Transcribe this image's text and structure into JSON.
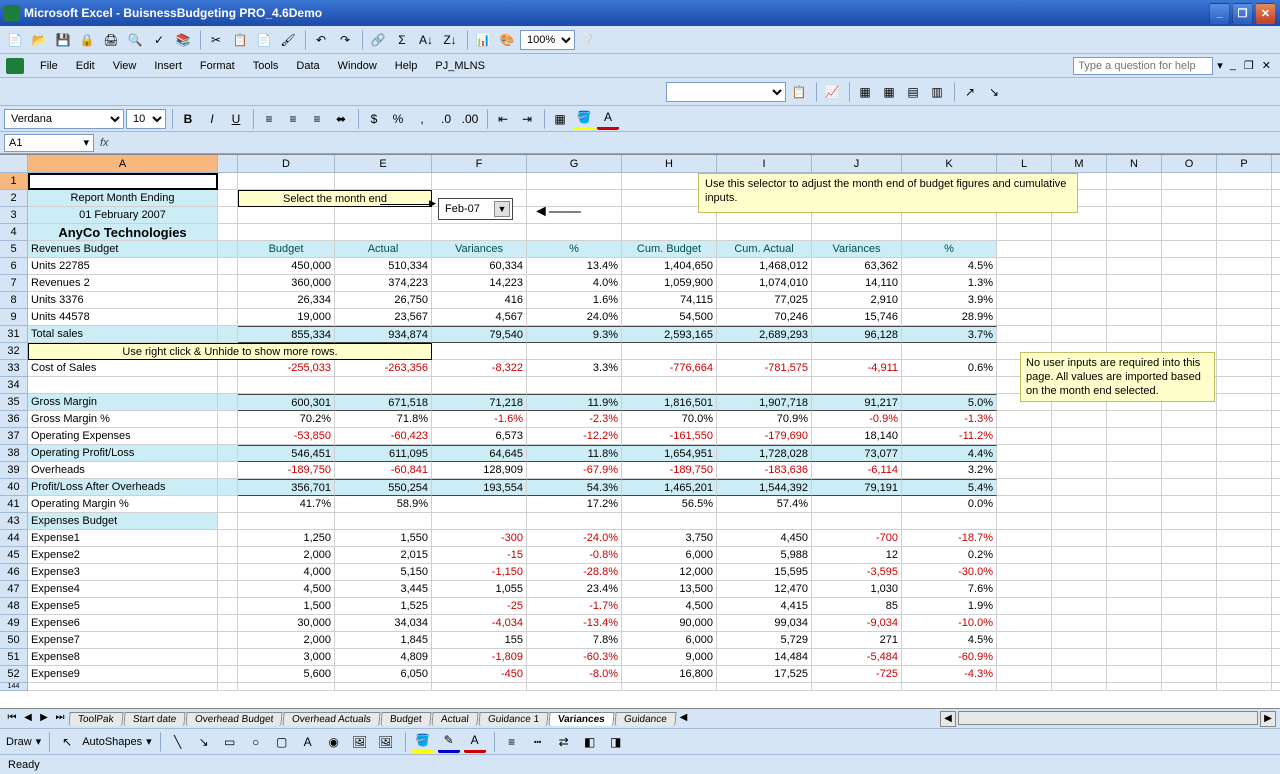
{
  "app": {
    "title": "Microsoft Excel - BuisnessBudgeting PRO_4.6Demo"
  },
  "menu": {
    "file": "File",
    "edit": "Edit",
    "view": "View",
    "insert": "Insert",
    "format": "Format",
    "tools": "Tools",
    "data": "Data",
    "window": "Window",
    "help": "Help",
    "pjmlns": "PJ_MLNS"
  },
  "helpPlaceholder": "Type a question for help",
  "font": {
    "name": "Verdana",
    "size": "10"
  },
  "namebox": "A1",
  "zoom": "100%",
  "columns": [
    "A",
    "D",
    "E",
    "F",
    "G",
    "H",
    "I",
    "J",
    "K",
    "L",
    "M",
    "N",
    "O",
    "P"
  ],
  "dropdown": {
    "value": "Feb-07"
  },
  "note1": "Use this selector to adjust the month end of budget figures and cumulative inputs.",
  "note2": "No user inputs are required into this page. All values are imported based on the month end selected.",
  "labels": {
    "reportMonth": "Report Month Ending",
    "selectMonth": "Select the month end",
    "date": "01 February 2007",
    "company": "AnyCo Technologies",
    "revBudget": "Revenues Budget",
    "unhideMsg": "Use right click & Unhide to show more rows.",
    "expBudget": "Expenses Budget"
  },
  "headers": {
    "budget": "Budget",
    "actual": "Actual",
    "variances": "Variances",
    "pct": "%",
    "cumBudget": "Cum. Budget",
    "cumActual": "Cum. Actual"
  },
  "rows": [
    {
      "n": "6",
      "label": "Units 22785",
      "v": [
        "450,000",
        "510,334",
        "60,334",
        "13.4%",
        "1,404,650",
        "1,468,012",
        "63,362",
        "4.5%"
      ]
    },
    {
      "n": "7",
      "label": "Revenues 2",
      "v": [
        "360,000",
        "374,223",
        "14,223",
        "4.0%",
        "1,059,900",
        "1,074,010",
        "14,110",
        "1.3%"
      ]
    },
    {
      "n": "8",
      "label": "Units 3376",
      "v": [
        "26,334",
        "26,750",
        "416",
        "1.6%",
        "74,115",
        "77,025",
        "2,910",
        "3.9%"
      ]
    },
    {
      "n": "9",
      "label": "Units 44578",
      "v": [
        "19,000",
        "23,567",
        "4,567",
        "24.0%",
        "54,500",
        "70,246",
        "15,746",
        "28.9%"
      ]
    },
    {
      "n": "31",
      "label": "Total sales",
      "v": [
        "855,334",
        "934,874",
        "79,540",
        "9.3%",
        "2,593,165",
        "2,689,293",
        "96,128",
        "3.7%"
      ],
      "hl": true
    },
    {
      "n": "33",
      "label": "Cost of Sales",
      "v": [
        "-255,033",
        "-263,356",
        "-8,322",
        "3.3%",
        "-776,664",
        "-781,575",
        "-4,911",
        "0.6%"
      ],
      "neg": [
        0,
        1,
        2,
        4,
        5,
        6
      ]
    },
    {
      "n": "35",
      "label": "Gross Margin",
      "v": [
        "600,301",
        "671,518",
        "71,218",
        "11.9%",
        "1,816,501",
        "1,907,718",
        "91,217",
        "5.0%"
      ],
      "hl": true
    },
    {
      "n": "36",
      "label": "Gross Margin %",
      "v": [
        "70.2%",
        "71.8%",
        "-1.6%",
        "-2.3%",
        "70.0%",
        "70.9%",
        "-0.9%",
        "-1.3%"
      ],
      "neg": [
        2,
        3,
        6,
        7
      ]
    },
    {
      "n": "37",
      "label": "Operating Expenses",
      "v": [
        "-53,850",
        "-60,423",
        "6,573",
        "-12.2%",
        "-161,550",
        "-179,690",
        "18,140",
        "-11.2%"
      ],
      "neg": [
        0,
        1,
        3,
        4,
        5,
        7
      ]
    },
    {
      "n": "38",
      "label": "Operating Profit/Loss",
      "v": [
        "546,451",
        "611,095",
        "64,645",
        "11.8%",
        "1,654,951",
        "1,728,028",
        "73,077",
        "4.4%"
      ],
      "hl": true
    },
    {
      "n": "39",
      "label": "Overheads",
      "v": [
        "-189,750",
        "-60,841",
        "128,909",
        "-67.9%",
        "-189,750",
        "-183,636",
        "-6,114",
        "3.2%"
      ],
      "neg": [
        0,
        1,
        3,
        4,
        5,
        6
      ]
    },
    {
      "n": "40",
      "label": "Profit/Loss After Overheads",
      "v": [
        "356,701",
        "550,254",
        "193,554",
        "54.3%",
        "1,465,201",
        "1,544,392",
        "79,191",
        "5.4%"
      ],
      "hl": true
    },
    {
      "n": "41",
      "label": "Operating Margin %",
      "v": [
        "41.7%",
        "58.9%",
        "",
        "17.2%",
        "56.5%",
        "57.4%",
        "",
        "0.0%"
      ]
    }
  ],
  "expenses": [
    {
      "n": "44",
      "label": "Expense1",
      "v": [
        "1,250",
        "1,550",
        "-300",
        "-24.0%",
        "3,750",
        "4,450",
        "-700",
        "-18.7%"
      ],
      "neg": [
        2,
        3,
        6,
        7
      ]
    },
    {
      "n": "45",
      "label": "Expense2",
      "v": [
        "2,000",
        "2,015",
        "-15",
        "-0.8%",
        "6,000",
        "5,988",
        "12",
        "0.2%"
      ],
      "neg": [
        2,
        3
      ]
    },
    {
      "n": "46",
      "label": "Expense3",
      "v": [
        "4,000",
        "5,150",
        "-1,150",
        "-28.8%",
        "12,000",
        "15,595",
        "-3,595",
        "-30.0%"
      ],
      "neg": [
        2,
        3,
        6,
        7
      ]
    },
    {
      "n": "47",
      "label": "Expense4",
      "v": [
        "4,500",
        "3,445",
        "1,055",
        "23.4%",
        "13,500",
        "12,470",
        "1,030",
        "7.6%"
      ]
    },
    {
      "n": "48",
      "label": "Expense5",
      "v": [
        "1,500",
        "1,525",
        "-25",
        "-1.7%",
        "4,500",
        "4,415",
        "85",
        "1.9%"
      ],
      "neg": [
        2,
        3
      ]
    },
    {
      "n": "49",
      "label": "Expense6",
      "v": [
        "30,000",
        "34,034",
        "-4,034",
        "-13.4%",
        "90,000",
        "99,034",
        "-9,034",
        "-10.0%"
      ],
      "neg": [
        2,
        3,
        6,
        7
      ]
    },
    {
      "n": "50",
      "label": "Expense7",
      "v": [
        "2,000",
        "1,845",
        "155",
        "7.8%",
        "6,000",
        "5,729",
        "271",
        "4.5%"
      ]
    },
    {
      "n": "51",
      "label": "Expense8",
      "v": [
        "3,000",
        "4,809",
        "-1,809",
        "-60.3%",
        "9,000",
        "14,484",
        "-5,484",
        "-60.9%"
      ],
      "neg": [
        2,
        3,
        6,
        7
      ]
    },
    {
      "n": "52",
      "label": "Expense9",
      "v": [
        "5,600",
        "6,050",
        "-450",
        "-8.0%",
        "16,800",
        "17,525",
        "-725",
        "-4.3%"
      ],
      "neg": [
        2,
        3,
        6,
        7
      ]
    }
  ],
  "tabs": [
    "ToolPak",
    "Start date",
    "Overhead Budget",
    "Overhead Actuals",
    "Budget",
    "Actual",
    "Guidance 1",
    "Variances",
    "Guidance"
  ],
  "activeTab": "Variances",
  "draw": {
    "label": "Draw",
    "autoshapes": "AutoShapes"
  },
  "status": "Ready"
}
